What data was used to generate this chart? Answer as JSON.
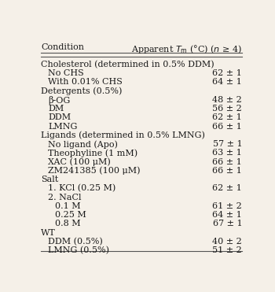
{
  "bg_color": "#f5f0e8",
  "header_col1": "Condition",
  "header_col2": "Apparent $T_{\\mathrm{m}}$ (°C) ($n$ ≥ 4)",
  "rows": [
    {
      "text": "Cholesterol (determined in 0.5% DDM)",
      "value": "",
      "indent": 0
    },
    {
      "text": "No CHS",
      "value": "62 ± 1",
      "indent": 1
    },
    {
      "text": "With 0.01% CHS",
      "value": "64 ± 1",
      "indent": 1
    },
    {
      "text": "Detergents (0.5%)",
      "value": "",
      "indent": 0
    },
    {
      "text": "β-OG",
      "value": "48 ± 2",
      "indent": 1
    },
    {
      "text": "DM",
      "value": "56 ± 2",
      "indent": 1
    },
    {
      "text": "DDM",
      "value": "62 ± 1",
      "indent": 1
    },
    {
      "text": "LMNG",
      "value": "66 ± 1",
      "indent": 1
    },
    {
      "text": "Ligands (determined in 0.5% LMNG)",
      "value": "",
      "indent": 0
    },
    {
      "text": "No ligand (Apo)",
      "value": "57 ± 1",
      "indent": 1
    },
    {
      "text": "Theophyline (1 mM)",
      "value": "63 ± 1",
      "indent": 1
    },
    {
      "text": "XAC (100 μM)",
      "value": "66 ± 1",
      "indent": 1
    },
    {
      "text": "ZM241385 (100 μM)",
      "value": "66 ± 1",
      "indent": 1
    },
    {
      "text": "Salt",
      "value": "",
      "indent": 0
    },
    {
      "text": "1. KCl (0.25 M)",
      "value": "62 ± 1",
      "indent": 1
    },
    {
      "text": "2. NaCl",
      "value": "",
      "indent": 1
    },
    {
      "text": "0.1 M",
      "value": "61 ± 2",
      "indent": 2
    },
    {
      "text": "0.25 M",
      "value": "64 ± 1",
      "indent": 2
    },
    {
      "text": "0.8 M",
      "value": "67 ± 1",
      "indent": 2
    },
    {
      "text": "WT",
      "value": "",
      "indent": 0
    },
    {
      "text": "DDM (0.5%)",
      "value": "40 ± 2",
      "indent": 1
    },
    {
      "text": "LMNG (0.5%)",
      "value": "51 ± 2",
      "indent": 1
    }
  ],
  "font_size": 8.0,
  "header_font_size": 8.0,
  "text_color": "#1a1a1a",
  "line_color": "#555555",
  "indent_sizes": [
    0.0,
    0.035,
    0.065
  ]
}
